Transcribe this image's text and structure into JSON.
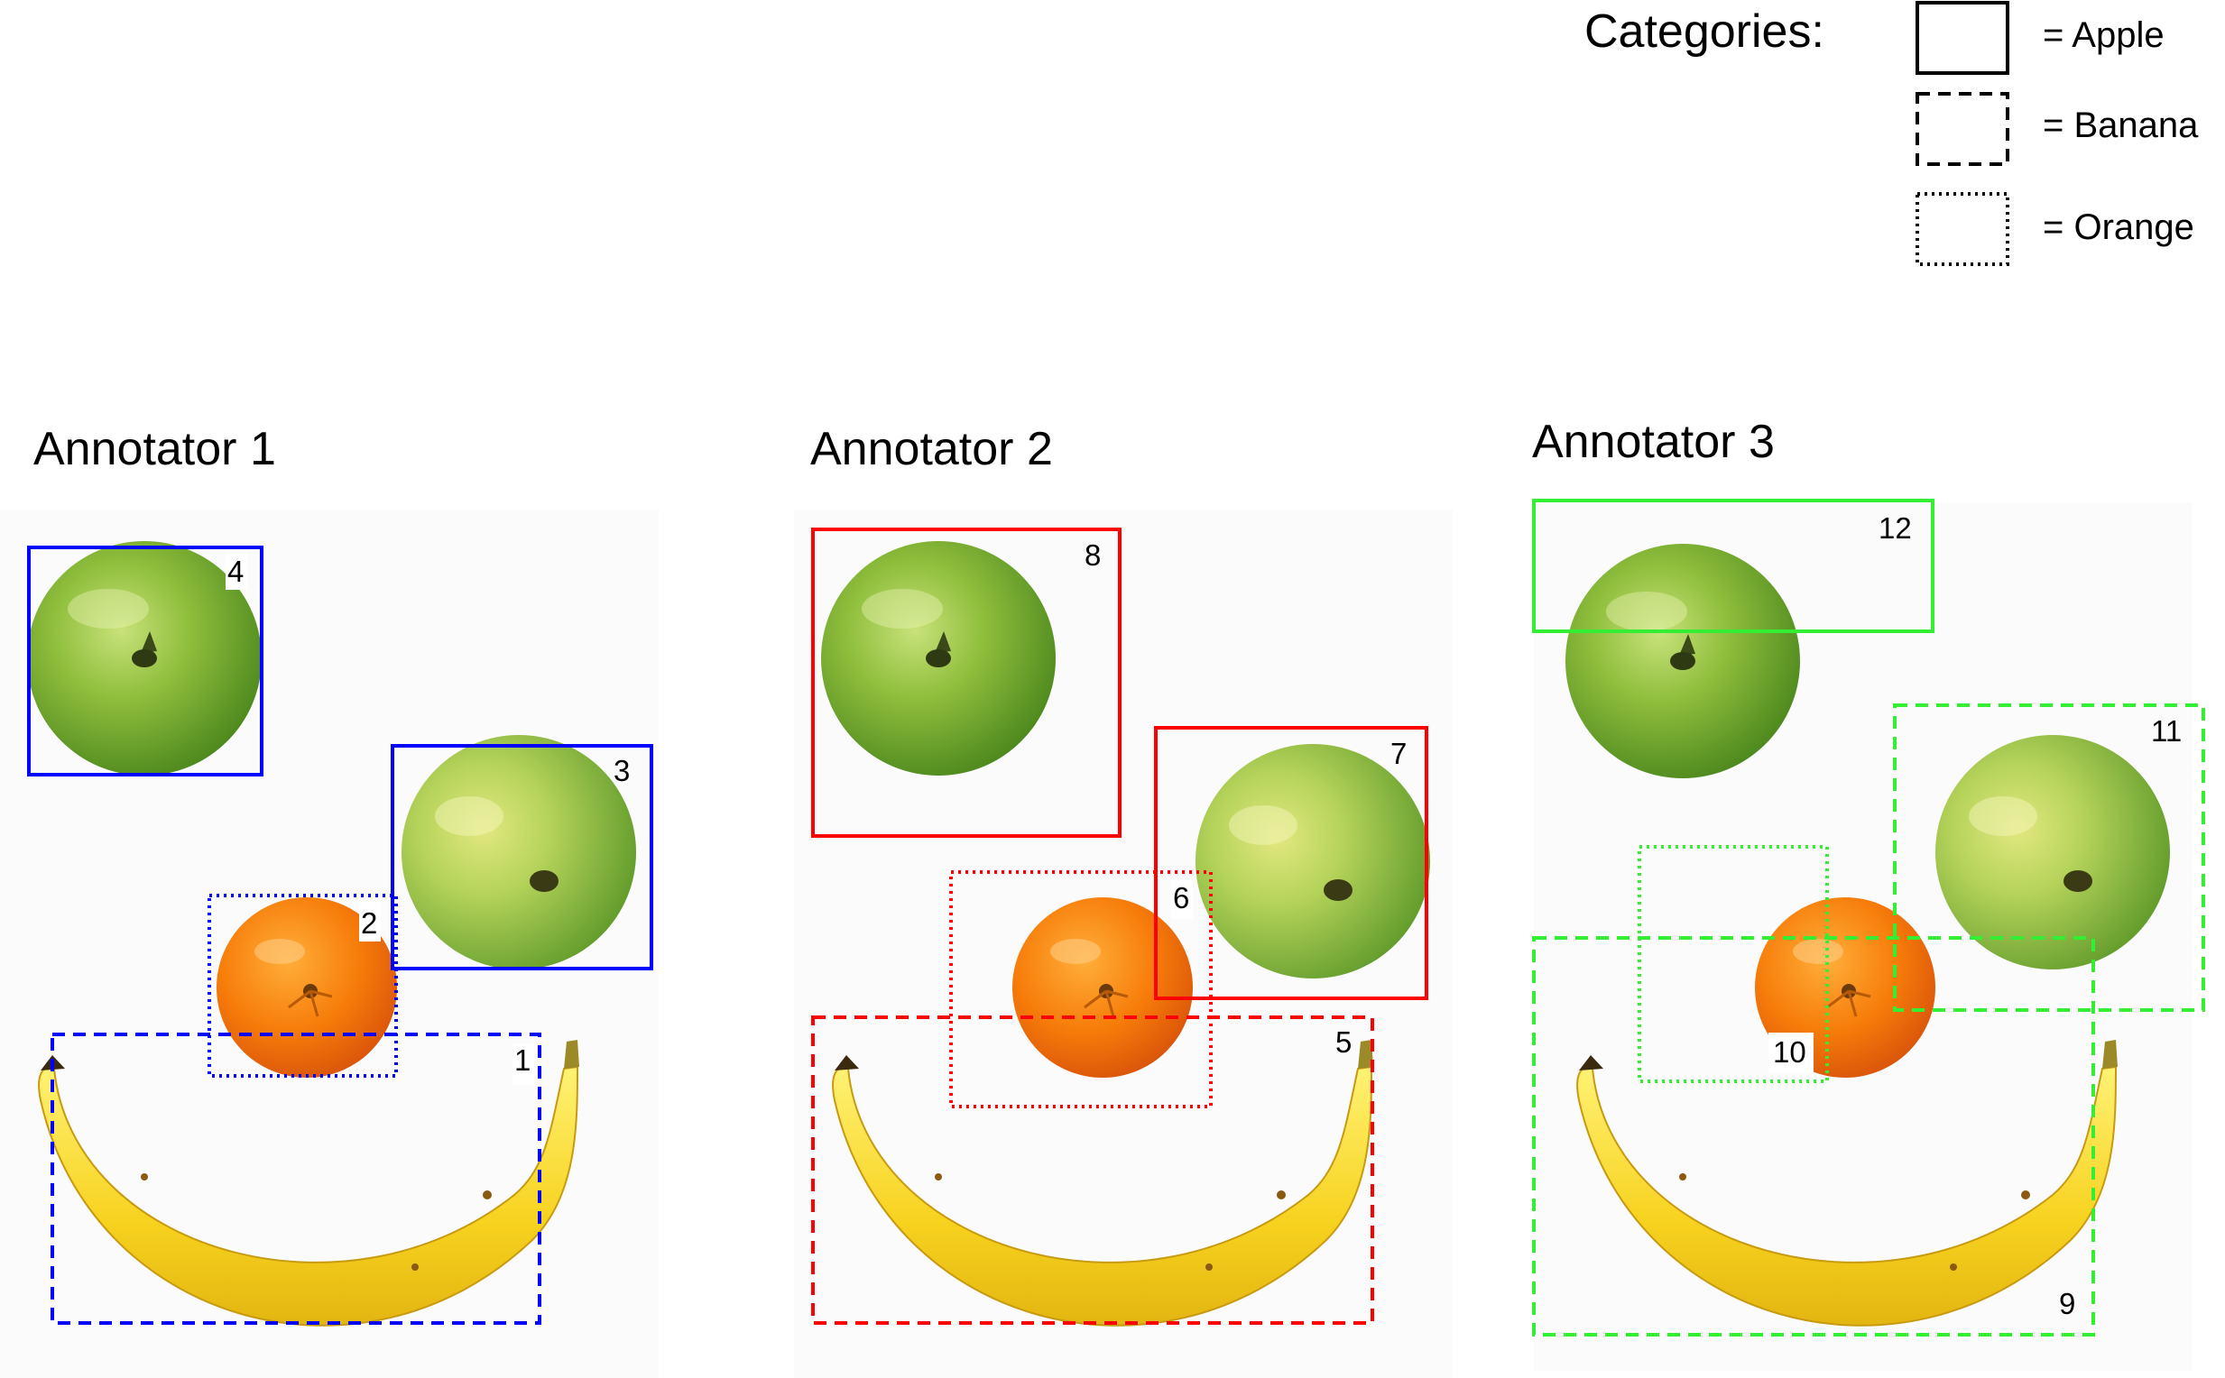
{
  "legend": {
    "title": "Categories:",
    "items": [
      {
        "label": "= Apple",
        "style": "solid"
      },
      {
        "label": "= Banana",
        "style": "dashed"
      },
      {
        "label": "= Orange",
        "style": "dotted"
      }
    ]
  },
  "panels": [
    {
      "title": "Annotator 1",
      "color": "#0000ff"
    },
    {
      "title": "Annotator 2",
      "color": "#ff0000"
    },
    {
      "title": "Annotator 3",
      "color": "#00ee00"
    }
  ],
  "boxes": [
    {
      "id": "1",
      "category": "banana"
    },
    {
      "id": "2",
      "category": "orange"
    },
    {
      "id": "3",
      "category": "apple"
    },
    {
      "id": "4",
      "category": "apple"
    },
    {
      "id": "5",
      "category": "banana"
    },
    {
      "id": "6",
      "category": "orange"
    },
    {
      "id": "7",
      "category": "apple"
    },
    {
      "id": "8",
      "category": "apple"
    },
    {
      "id": "9",
      "category": "banana"
    },
    {
      "id": "10",
      "category": "orange"
    },
    {
      "id": "11",
      "category": "banana"
    },
    {
      "id": "12",
      "category": "apple"
    }
  ]
}
